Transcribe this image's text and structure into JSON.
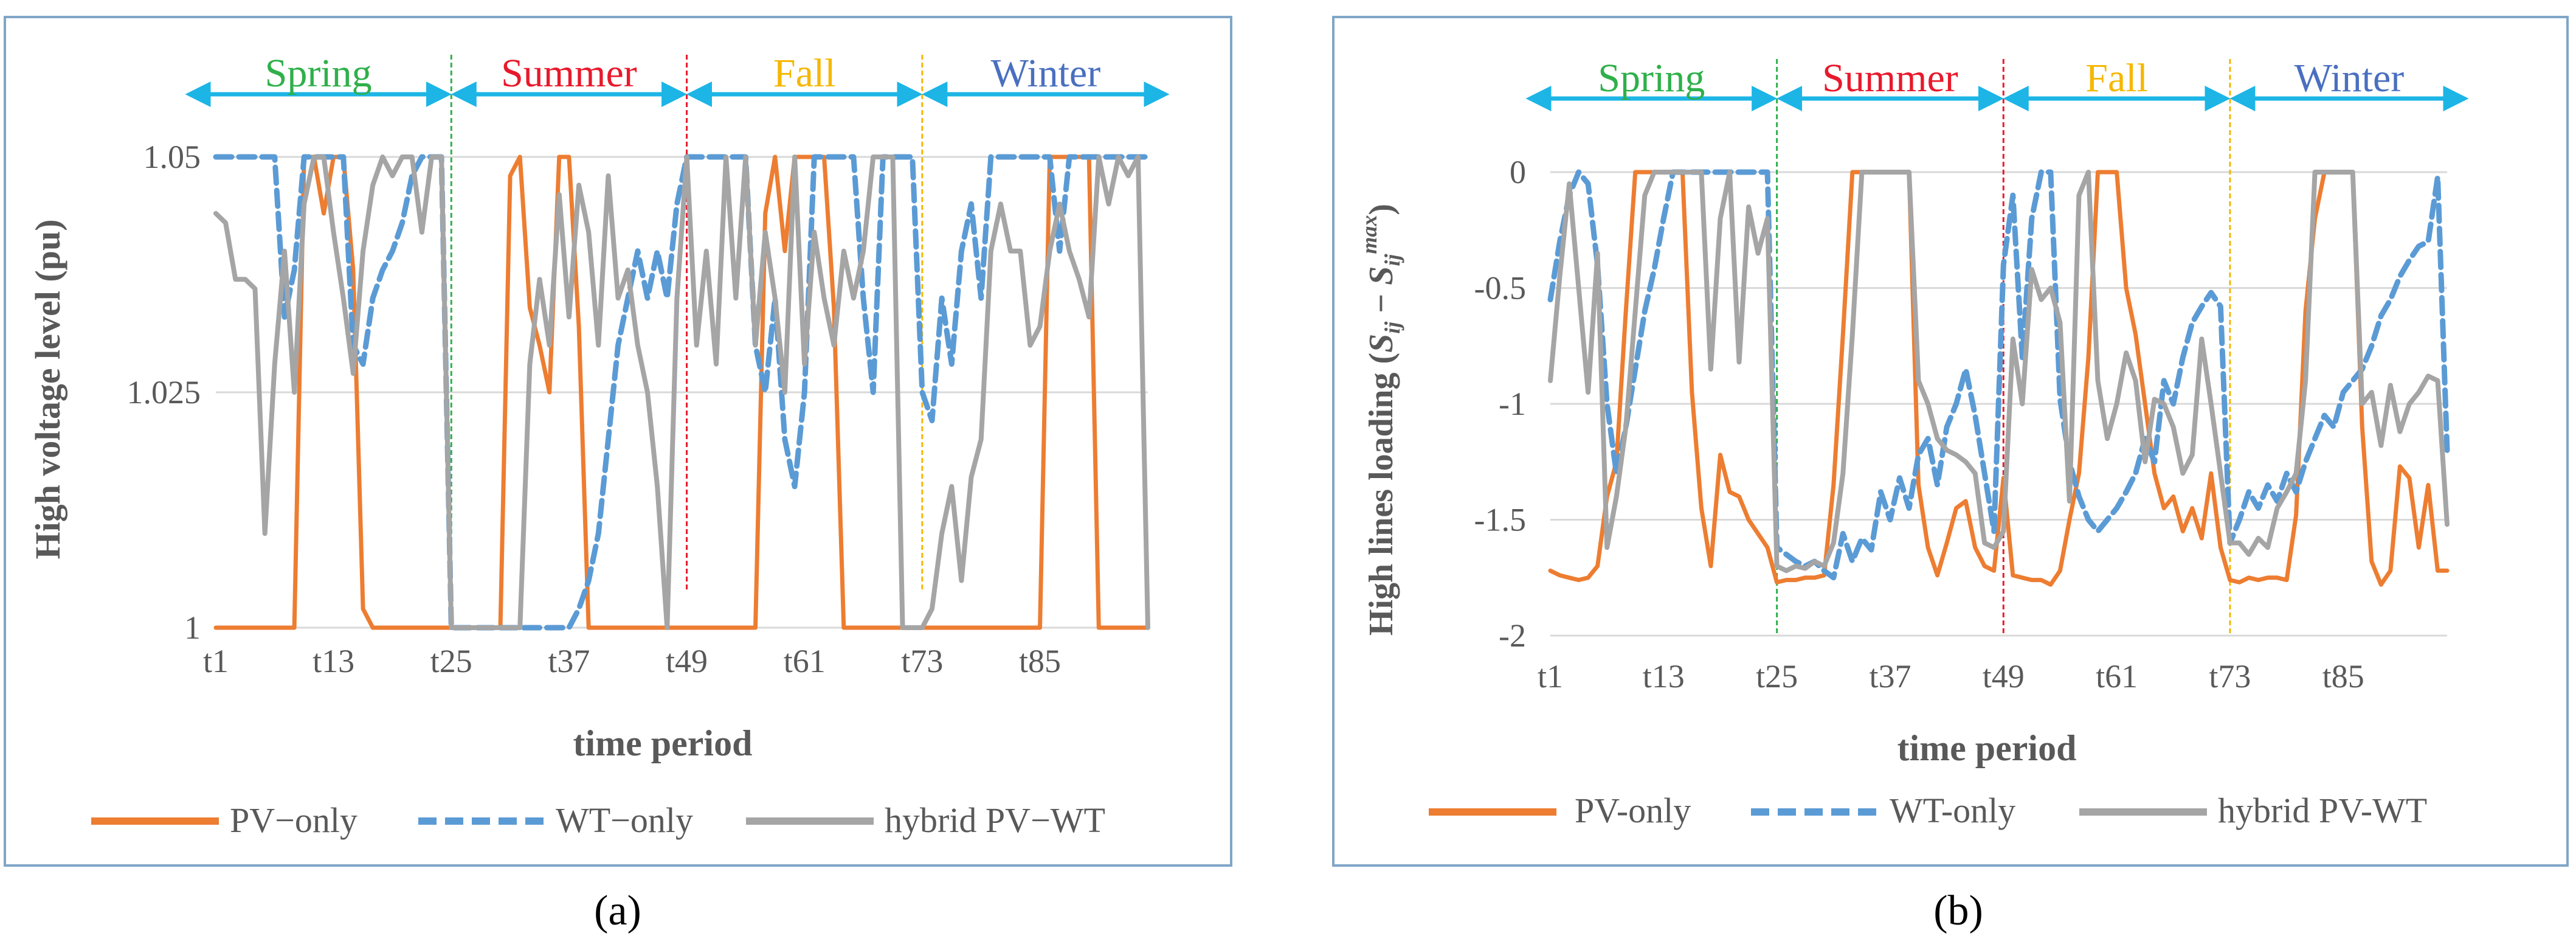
{
  "colors": {
    "pv": "#ED7D31",
    "wt": "#5B9BD5",
    "hybrid": "#A5A5A5",
    "arrow": "#1CB5E6",
    "spring": "#2FB04A",
    "summer": "#E8192C",
    "fall": "#F5B700",
    "winter": "#4A6FC0",
    "frame": "#7FA6C7",
    "grid": "#D9D9D9",
    "axis_text": "#595959"
  },
  "seasons": [
    "Spring",
    "Summer",
    "Fall",
    "Winter"
  ],
  "legend": {
    "pv_a": "PV−only",
    "wt_a": "WT−only",
    "hy_a": "hybrid PV−WT",
    "pv_b": "PV-only",
    "wt_b": "WT-only",
    "hy_b": "hybrid PV-WT"
  },
  "panel_labels": {
    "a": "(a)",
    "b": "(b)"
  },
  "ylabel_b_tail": "S_ij − S_ij^max",
  "chart_data": [
    {
      "type": "line",
      "title": "",
      "xlabel": "time period",
      "ylabel": "High voltage level (pu)",
      "ylim": [
        1.0,
        1.05
      ],
      "yticks": [
        "1",
        "1.025",
        "1.05"
      ],
      "xtick_labels": [
        "t1",
        "t13",
        "t25",
        "t37",
        "t49",
        "t61",
        "t73",
        "t85"
      ],
      "season_boundaries": [
        24,
        48,
        72
      ],
      "series": [
        {
          "name": "PV−only",
          "values": [
            1.0,
            1.0,
            1.0,
            1.0,
            1.0,
            1.0,
            1.0,
            1.0,
            1.0,
            1.05,
            1.05,
            1.044,
            1.05,
            1.05,
            1.038,
            1.002,
            1.0,
            1.0,
            1.0,
            1.0,
            1.0,
            1.0,
            1.0,
            1.0,
            1.0,
            1.0,
            1.0,
            1.0,
            1.0,
            1.0,
            1.048,
            1.05,
            1.034,
            1.03,
            1.025,
            1.05,
            1.05,
            1.032,
            1.0,
            1.0,
            1.0,
            1.0,
            1.0,
            1.0,
            1.0,
            1.0,
            1.0,
            1.0,
            1.0,
            1.0,
            1.0,
            1.0,
            1.0,
            1.0,
            1.0,
            1.0,
            1.044,
            1.05,
            1.04,
            1.05,
            1.05,
            1.05,
            1.05,
            1.034,
            1.0,
            1.0,
            1.0,
            1.0,
            1.0,
            1.0,
            1.0,
            1.0,
            1.0,
            1.0,
            1.0,
            1.0,
            1.0,
            1.0,
            1.0,
            1.0,
            1.0,
            1.0,
            1.0,
            1.0,
            1.0,
            1.05,
            1.05,
            1.05,
            1.05,
            1.05,
            1.0,
            1.0,
            1.0,
            1.0,
            1.0,
            1.0
          ]
        },
        {
          "name": "WT−only",
          "values": [
            1.05,
            1.05,
            1.05,
            1.05,
            1.05,
            1.05,
            1.05,
            1.033,
            1.038,
            1.05,
            1.05,
            1.05,
            1.05,
            1.05,
            1.03,
            1.028,
            1.035,
            1.038,
            1.04,
            1.043,
            1.048,
            1.05,
            1.05,
            1.05,
            1.0,
            1.0,
            1.0,
            1.0,
            1.0,
            1.0,
            1.0,
            1.0,
            1.0,
            1.0,
            1.0,
            1.0,
            1.0,
            1.002,
            1.005,
            1.01,
            1.02,
            1.03,
            1.035,
            1.04,
            1.035,
            1.04,
            1.035,
            1.045,
            1.05,
            1.05,
            1.05,
            1.05,
            1.05,
            1.05,
            1.05,
            1.03,
            1.025,
            1.035,
            1.02,
            1.015,
            1.025,
            1.05,
            1.05,
            1.05,
            1.05,
            1.05,
            1.035,
            1.025,
            1.05,
            1.05,
            1.05,
            1.05,
            1.025,
            1.022,
            1.035,
            1.028,
            1.04,
            1.045,
            1.035,
            1.05,
            1.05,
            1.05,
            1.05,
            1.05,
            1.05,
            1.05,
            1.04,
            1.05,
            1.05,
            1.05,
            1.05,
            1.05,
            1.05,
            1.05,
            1.05,
            1.05
          ]
        },
        {
          "name": "hybrid PV−WT",
          "values": [
            1.044,
            1.043,
            1.037,
            1.037,
            1.036,
            1.01,
            1.028,
            1.04,
            1.025,
            1.045,
            1.05,
            1.05,
            1.042,
            1.035,
            1.027,
            1.04,
            1.047,
            1.05,
            1.048,
            1.05,
            1.05,
            1.042,
            1.05,
            1.05,
            1.0,
            1.0,
            1.0,
            1.0,
            1.0,
            1.0,
            1.0,
            1.0,
            1.028,
            1.037,
            1.03,
            1.046,
            1.033,
            1.047,
            1.042,
            1.03,
            1.048,
            1.035,
            1.038,
            1.03,
            1.025,
            1.015,
            1.0,
            1.035,
            1.05,
            1.03,
            1.04,
            1.028,
            1.05,
            1.035,
            1.05,
            1.03,
            1.042,
            1.035,
            1.025,
            1.05,
            1.028,
            1.042,
            1.035,
            1.03,
            1.04,
            1.035,
            1.04,
            1.05,
            1.05,
            1.05,
            1.0,
            1.0,
            1.0,
            1.002,
            1.01,
            1.015,
            1.005,
            1.016,
            1.02,
            1.04,
            1.045,
            1.04,
            1.04,
            1.03,
            1.032,
            1.04,
            1.045,
            1.04,
            1.037,
            1.033,
            1.05,
            1.045,
            1.05,
            1.048,
            1.05,
            1.0
          ]
        }
      ]
    },
    {
      "type": "line",
      "title": "",
      "xlabel": "time period",
      "ylabel": "High lines loading (S_ij − S_ij^max)",
      "ylim": [
        -2.0,
        0.0
      ],
      "yticks": [
        "0",
        "-0.5",
        "-1",
        "-1.5",
        "-2"
      ],
      "xtick_labels": [
        "t1",
        "t13",
        "t25",
        "t37",
        "t49",
        "t61",
        "t73",
        "t85"
      ],
      "season_boundaries": [
        24,
        48,
        72
      ],
      "series": [
        {
          "name": "PV-only",
          "values": [
            -1.72,
            -1.74,
            -1.75,
            -1.76,
            -1.75,
            -1.7,
            -1.4,
            -1.25,
            -0.6,
            0,
            0,
            0,
            0,
            0,
            0,
            -0.95,
            -1.45,
            -1.7,
            -1.22,
            -1.38,
            -1.4,
            -1.5,
            -1.56,
            -1.62,
            -1.77,
            -1.76,
            -1.76,
            -1.75,
            -1.75,
            -1.74,
            -1.35,
            -0.7,
            0,
            0,
            0,
            0,
            0,
            0,
            0,
            -1.35,
            -1.62,
            -1.74,
            -1.6,
            -1.45,
            -1.42,
            -1.62,
            -1.7,
            -1.72,
            -1.32,
            -1.74,
            -1.75,
            -1.76,
            -1.76,
            -1.78,
            -1.72,
            -1.5,
            -1.3,
            -0.8,
            0,
            0,
            0,
            -0.5,
            -0.7,
            -1.0,
            -1.3,
            -1.45,
            -1.4,
            -1.55,
            -1.45,
            -1.58,
            -1.3,
            -1.62,
            -1.76,
            -1.77,
            -1.75,
            -1.76,
            -1.75,
            -1.75,
            -1.76,
            -1.48,
            -0.6,
            -0.2,
            0,
            0,
            0,
            0,
            -1.1,
            -1.68,
            -1.78,
            -1.72,
            -1.27,
            -1.32,
            -1.62,
            -1.35,
            -1.72,
            -1.72
          ]
        },
        {
          "name": "WT-only",
          "values": [
            -0.55,
            -0.3,
            -0.1,
            0,
            -0.05,
            -0.4,
            -1.0,
            -1.3,
            -1.1,
            -0.85,
            -0.6,
            -0.42,
            -0.2,
            0,
            0,
            0,
            0,
            0,
            0,
            0,
            0,
            0,
            0,
            0,
            -1.62,
            -1.65,
            -1.68,
            -1.7,
            -1.68,
            -1.72,
            -1.75,
            -1.56,
            -1.68,
            -1.58,
            -1.63,
            -1.38,
            -1.5,
            -1.32,
            -1.45,
            -1.22,
            -1.15,
            -1.35,
            -1.1,
            -1.0,
            -0.85,
            -1.05,
            -1.3,
            -1.55,
            -0.4,
            -0.1,
            -0.8,
            -0.2,
            0,
            0,
            -0.98,
            -1.25,
            -1.4,
            -1.5,
            -1.55,
            -1.5,
            -1.45,
            -1.38,
            -1.3,
            -1.15,
            -1.25,
            -0.9,
            -1.0,
            -0.8,
            -0.65,
            -0.58,
            -0.52,
            -0.58,
            -1.6,
            -1.5,
            -1.38,
            -1.45,
            -1.35,
            -1.42,
            -1.3,
            -1.38,
            -1.25,
            -1.15,
            -1.05,
            -1.1,
            -0.95,
            -0.9,
            -0.85,
            -0.75,
            -0.62,
            -0.55,
            -0.45,
            -0.38,
            -0.32,
            -0.3,
            -0.02,
            -1.2
          ]
        },
        {
          "name": "hybrid PV-WT",
          "values": [
            -0.9,
            -0.45,
            -0.05,
            -0.5,
            -0.95,
            -0.35,
            -1.62,
            -1.4,
            -1.1,
            -0.6,
            -0.1,
            0,
            0,
            0,
            0,
            0,
            0,
            -0.85,
            -0.2,
            0,
            -0.82,
            -0.15,
            -0.35,
            -0.2,
            -1.7,
            -1.72,
            -1.7,
            -1.71,
            -1.68,
            -1.7,
            -1.6,
            -1.3,
            -0.7,
            0,
            0,
            0,
            0,
            0,
            0,
            -0.9,
            -1.0,
            -1.15,
            -1.2,
            -1.22,
            -1.25,
            -1.3,
            -1.6,
            -1.62,
            -1.55,
            -0.72,
            -1.0,
            -0.42,
            -0.55,
            -0.5,
            -0.65,
            -1.42,
            -0.1,
            0,
            -0.9,
            -1.15,
            -1.0,
            -0.78,
            -0.9,
            -1.25,
            -0.98,
            -1.0,
            -1.1,
            -1.3,
            -1.22,
            -0.72,
            -1.0,
            -1.3,
            -1.6,
            -1.6,
            -1.65,
            -1.58,
            -1.62,
            -1.45,
            -1.38,
            -1.3,
            -0.9,
            0,
            0,
            0,
            0,
            0,
            -1.0,
            -0.95,
            -1.18,
            -0.92,
            -1.12,
            -1.0,
            -0.95,
            -0.88,
            -0.9,
            -1.52
          ]
        }
      ]
    }
  ]
}
